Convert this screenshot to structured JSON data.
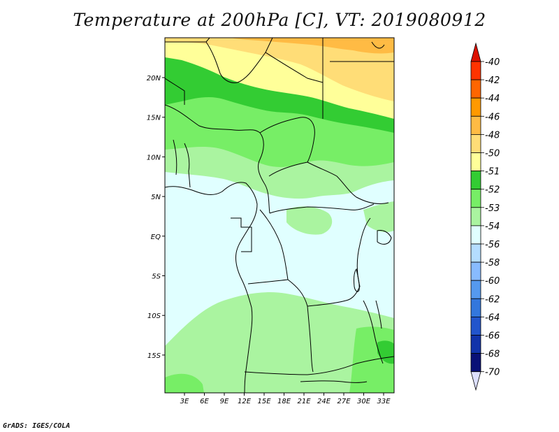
{
  "title": "Temperature at 200hPa [C], VT: 2019080912",
  "footer": "GrADS: IGES/COLA",
  "colors": {
    "ocean": "#e0ffff",
    "border_line": "#000000"
  },
  "chart_data": {
    "type": "heatmap",
    "title": "Temperature at 200hPa [C], VT: 2019080912",
    "x_ticks": [
      "3E",
      "6E",
      "9E",
      "12E",
      "15E",
      "18E",
      "21E",
      "24E",
      "27E",
      "30E",
      "33E"
    ],
    "y_ticks": [
      "20N",
      "15N",
      "10N",
      "5N",
      "EQ",
      "5S",
      "10S",
      "15S"
    ],
    "colorbar": {
      "labels": [
        "-40",
        "-42",
        "-44",
        "-46",
        "-48",
        "-50",
        "-51",
        "-52",
        "-53",
        "-54",
        "-56",
        "-58",
        "-60",
        "-62",
        "-64",
        "-66",
        "-68",
        "-70"
      ],
      "colors": [
        "#dd1100",
        "#ff3300",
        "#ff6600",
        "#ff9900",
        "#ffbb44",
        "#ffdd77",
        "#ffff99",
        "#33cc33",
        "#77ee66",
        "#aaf4a0",
        "#e0ffff",
        "#b4ddff",
        "#88bbff",
        "#5599ee",
        "#3377dd",
        "#2255cc",
        "#1133aa",
        "#0a1177",
        "#111155"
      ]
    }
  }
}
